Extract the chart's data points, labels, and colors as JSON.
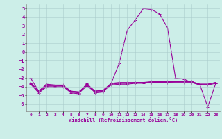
{
  "x": [
    0,
    1,
    2,
    3,
    4,
    5,
    6,
    7,
    8,
    9,
    10,
    11,
    12,
    13,
    14,
    15,
    16,
    17,
    18,
    19,
    20,
    21,
    22,
    23
  ],
  "line1": [
    -3.0,
    -4.5,
    -3.7,
    -3.8,
    -3.9,
    -4.7,
    -4.8,
    -3.6,
    -4.7,
    -4.6,
    -3.6,
    -1.3,
    2.5,
    3.7,
    5.0,
    4.9,
    4.4,
    2.8,
    -3.0,
    -3.1,
    -3.5,
    -3.7,
    -6.3,
    -3.6
  ],
  "line2": [
    -3.5,
    -4.5,
    -3.8,
    -3.8,
    -3.8,
    -4.5,
    -4.6,
    -3.7,
    -4.5,
    -4.4,
    -3.6,
    -3.5,
    -3.5,
    -3.5,
    -3.5,
    -3.4,
    -3.4,
    -3.4,
    -3.4,
    -3.4,
    -3.4,
    -3.7,
    -3.7,
    -3.5
  ],
  "line3": [
    -3.6,
    -4.6,
    -3.9,
    -3.9,
    -3.9,
    -4.5,
    -4.6,
    -3.8,
    -4.5,
    -4.4,
    -3.7,
    -3.6,
    -3.6,
    -3.5,
    -3.5,
    -3.5,
    -3.5,
    -3.5,
    -3.4,
    -3.4,
    -3.4,
    -3.7,
    -3.7,
    -3.5
  ],
  "line4": [
    -3.7,
    -4.7,
    -4.0,
    -4.0,
    -4.0,
    -4.6,
    -4.7,
    -3.9,
    -4.6,
    -4.5,
    -3.8,
    -3.7,
    -3.7,
    -3.6,
    -3.6,
    -3.5,
    -3.5,
    -3.5,
    -3.5,
    -3.5,
    -3.5,
    -3.8,
    -3.8,
    -3.6
  ],
  "ylim": [
    -6.8,
    5.5
  ],
  "yticks": [
    -6,
    -5,
    -4,
    -3,
    -2,
    -1,
    0,
    1,
    2,
    3,
    4,
    5
  ],
  "xticks": [
    0,
    1,
    2,
    3,
    4,
    5,
    6,
    7,
    8,
    9,
    10,
    11,
    12,
    13,
    14,
    15,
    16,
    17,
    18,
    19,
    20,
    21,
    22,
    23
  ],
  "xlabel": "Windchill (Refroidissement éolien,°C)",
  "bg_color": "#cceee8",
  "line_color": "#990099",
  "grid_color": "#aacccc"
}
